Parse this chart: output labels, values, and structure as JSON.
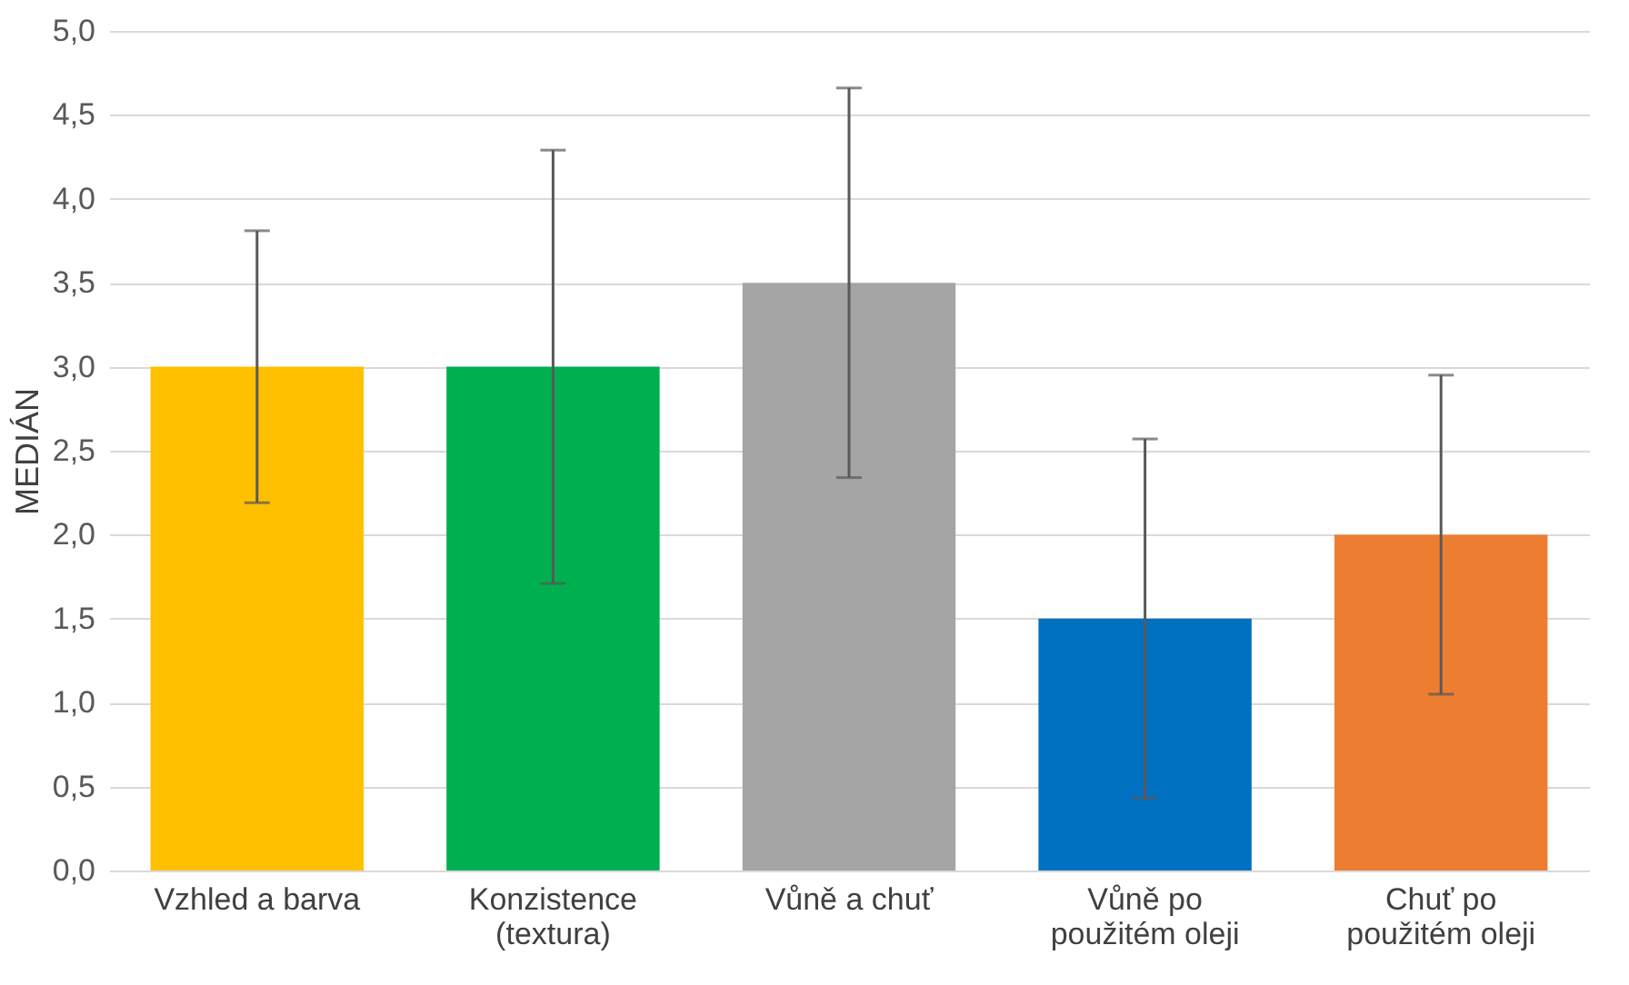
{
  "chart_data": {
    "type": "bar",
    "ylabel": "MEDIÁN",
    "categories": [
      "Vzhled a barva",
      "Konzistence (textura)",
      "Vůně a chuť",
      "Vůně po použitém oleji",
      "Chuť po použitém oleji"
    ],
    "values": [
      3.0,
      3.0,
      3.5,
      1.5,
      2.0
    ],
    "colors": [
      "#ffc000",
      "#00b050",
      "#a5a5a5",
      "#0070c0",
      "#ed7d31"
    ],
    "errors": [
      0.81,
      1.29,
      1.16,
      1.07,
      0.95
    ],
    "ylim": [
      0,
      5
    ],
    "yticks": [
      {
        "value": 0,
        "label": "0,0"
      },
      {
        "value": 0.5,
        "label": "0,5"
      },
      {
        "value": 1,
        "label": "1,0"
      },
      {
        "value": 1.5,
        "label": "1,5"
      },
      {
        "value": 2,
        "label": "2,0"
      },
      {
        "value": 2.5,
        "label": "2,5"
      },
      {
        "value": 3,
        "label": "3,0"
      },
      {
        "value": 3.5,
        "label": "3,5"
      },
      {
        "value": 4,
        "label": "4,0"
      },
      {
        "value": 4.5,
        "label": "4,5"
      },
      {
        "value": 5,
        "label": "5,0"
      }
    ],
    "grid": "y"
  }
}
